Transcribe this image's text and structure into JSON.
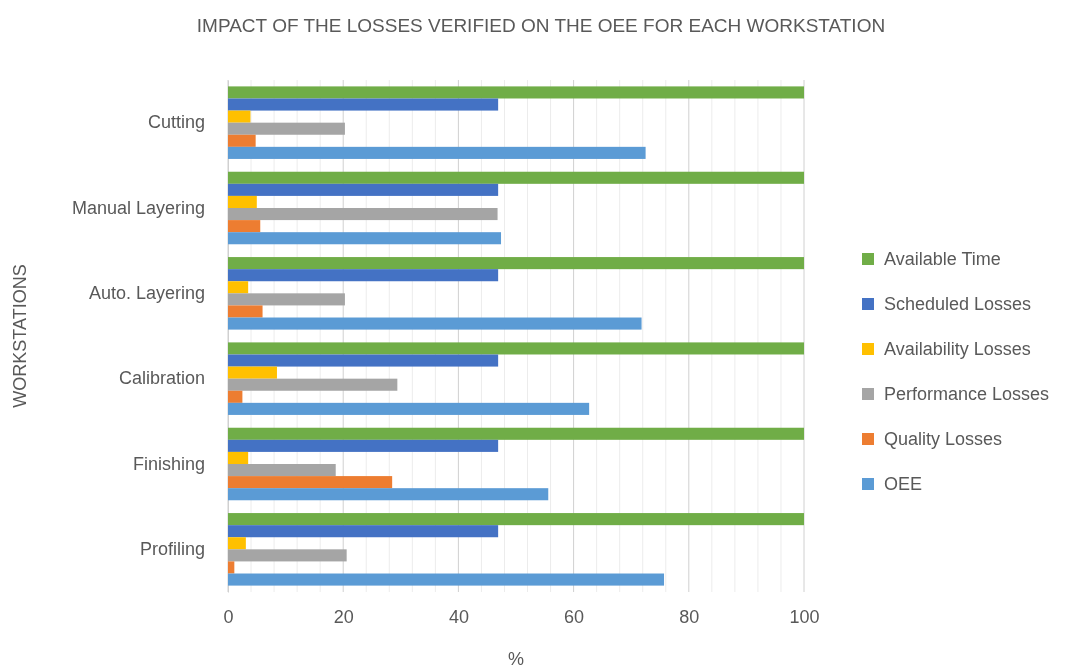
{
  "chart_data": {
    "type": "bar",
    "orientation": "horizontal",
    "title": "IMPACT OF THE LOSSES VERIFIED ON THE OEE FOR EACH WORKSTATION",
    "xlabel": "%",
    "ylabel": "WORKSTATIONS",
    "categories": [
      "Cutting",
      "Manual Layering",
      "Auto. Layering",
      "Calibration",
      "Finishing",
      "Profiling"
    ],
    "series": [
      {
        "name": "Available Time",
        "color": "#70ad47",
        "values": [
          100,
          100,
          100,
          100,
          100,
          100
        ]
      },
      {
        "name": "Scheduled Losses",
        "color": "#4472c4",
        "values": [
          46.9,
          46.9,
          46.9,
          46.9,
          46.9,
          46.9
        ]
      },
      {
        "name": "Availability Losses",
        "color": "#ffc000",
        "values": [
          3.9,
          5.0,
          3.5,
          8.5,
          3.5,
          3.1
        ]
      },
      {
        "name": "Performance Losses",
        "color": "#a5a5a5",
        "values": [
          20.3,
          46.8,
          20.3,
          29.4,
          18.7,
          20.6
        ]
      },
      {
        "name": "Quality Losses",
        "color": "#ed7d31",
        "values": [
          4.8,
          5.6,
          6.0,
          2.5,
          28.5,
          1.1
        ]
      },
      {
        "name": "OEE",
        "color": "#5b9bd5",
        "values": [
          72.5,
          47.4,
          71.8,
          62.7,
          55.6,
          75.7
        ]
      }
    ],
    "xlim": [
      0,
      100
    ],
    "xticks": [
      0,
      {
        "value": 4,
        "label": null
      },
      {
        "value": 8,
        "label": null
      },
      {
        "value": 12,
        "label": null
      },
      {
        "value": 16,
        "label": null
      },
      20,
      {
        "value": 24,
        "label": null
      },
      {
        "value": 28,
        "label": null
      },
      {
        "value": 32,
        "label": null
      },
      {
        "value": 36,
        "label": null
      },
      40,
      {
        "value": 44,
        "label": null
      },
      {
        "value": 48,
        "label": null
      },
      {
        "value": 52,
        "label": null
      },
      {
        "value": 56,
        "label": null
      },
      60,
      {
        "value": 64,
        "label": null
      },
      {
        "value": 68,
        "label": null
      },
      {
        "value": 72,
        "label": null
      },
      {
        "value": 76,
        "label": null
      },
      80,
      {
        "value": 84,
        "label": null
      },
      {
        "value": 88,
        "label": null
      },
      {
        "value": 92,
        "label": null
      },
      {
        "value": 96,
        "label": null
      },
      100
    ],
    "grid": true,
    "legend": "right"
  }
}
